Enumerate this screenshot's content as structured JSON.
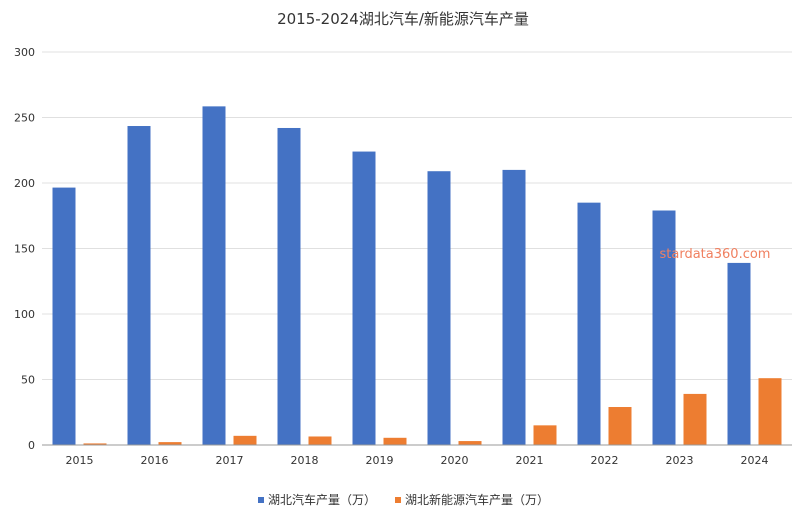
{
  "chart_data": {
    "type": "bar",
    "title": "2015-2024湖北汽车/新能源汽车产量",
    "categories": [
      "2015",
      "2016",
      "2017",
      "2018",
      "2019",
      "2020",
      "2021",
      "2022",
      "2023",
      "2024"
    ],
    "series": [
      {
        "name": "湖北汽车产量（万）",
        "color": "#4472c4",
        "values": [
          196.5,
          243.5,
          258.5,
          242,
          224,
          209,
          210,
          185,
          179,
          139
        ]
      },
      {
        "name": "湖北新能源汽车产量（万）",
        "color": "#ed7d31",
        "values": [
          1.2,
          2.2,
          7.0,
          6.5,
          5.5,
          3.0,
          15.0,
          29.0,
          39.0,
          51.0
        ]
      }
    ],
    "ylim": [
      0,
      300
    ],
    "yticks": [
      0,
      50,
      100,
      150,
      200,
      250,
      300
    ],
    "grid": true,
    "legend_position": "bottom"
  },
  "watermark": "stardata360.com"
}
